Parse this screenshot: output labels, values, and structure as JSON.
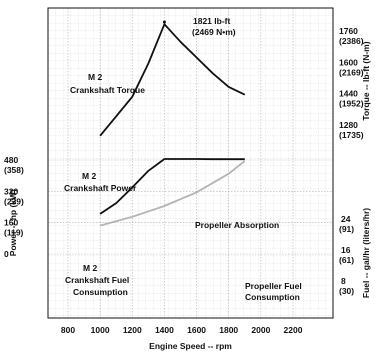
{
  "chart_data": {
    "type": "line",
    "title": "",
    "xlabel": "Engine Speed -- rpm",
    "xlim": [
      700,
      2400
    ],
    "xticks": [
      "800",
      "1000",
      "1200",
      "1400",
      "1600",
      "1800",
      "2000",
      "2200"
    ],
    "x_values": [
      800,
      1000,
      1200,
      1400,
      1600,
      1800,
      2000,
      2200
    ],
    "grid": true,
    "left_axis": {
      "label": "Power -- hp (kW)",
      "ticks": [
        {
          "value": 480,
          "label": "480",
          "sublabel": "(358)"
        },
        {
          "value": 320,
          "label": "320",
          "sublabel": "(239)"
        },
        {
          "value": 160,
          "label": "160",
          "sublabel": "(119)"
        },
        {
          "value": 0,
          "label": "0",
          "sublabel": ""
        }
      ]
    },
    "right_torque_axis": {
      "label": "Torque -- lb-ft (N-m)",
      "ticks": [
        {
          "value": 1760,
          "label": "1760",
          "sublabel": "(2386)"
        },
        {
          "value": 1600,
          "label": "1600",
          "sublabel": "(2169)"
        },
        {
          "value": 1440,
          "label": "1440",
          "sublabel": "(1952)"
        },
        {
          "value": 1280,
          "label": "1280",
          "sublabel": "(1735)"
        }
      ]
    },
    "right_fuel_axis": {
      "label": "Fuel -- gal/hr (liters/hr)",
      "ticks": [
        {
          "value": 24,
          "label": "24",
          "sublabel": "(91)"
        },
        {
          "value": 16,
          "label": "16",
          "sublabel": "(61)"
        },
        {
          "value": 8,
          "label": "8",
          "sublabel": "(30)"
        }
      ]
    },
    "series": [
      {
        "label_lines": [
          "M 2",
          "Crankshaft Torque"
        ],
        "axis": "torque",
        "color": "#111111",
        "x": [
          1000,
          1100,
          1200,
          1300,
          1400,
          1500,
          1600,
          1700,
          1800,
          1900
        ],
        "y": [
          1240,
          1340,
          1440,
          1610,
          1810,
          1720,
          1640,
          1560,
          1490,
          1450
        ]
      },
      {
        "label_lines": [
          "M 2",
          "Crankshaft Power"
        ],
        "axis": "power",
        "color": "#111111",
        "x": [
          1000,
          1100,
          1200,
          1300,
          1400,
          1500,
          1600,
          1700,
          1800,
          1900
        ],
        "y": [
          205,
          260,
          340,
          425,
          485,
          485,
          485,
          484,
          484,
          484
        ]
      },
      {
        "label_lines": [
          "Propeller Absorption"
        ],
        "axis": "power",
        "color": "#b4b4b4",
        "x": [
          1000,
          1200,
          1400,
          1600,
          1800,
          1900
        ],
        "y": [
          145,
          190,
          245,
          315,
          410,
          475
        ]
      },
      {
        "label_lines": [
          "M 2",
          "Crankshaft Fuel",
          "Consumption"
        ],
        "axis": "fuel",
        "color": "#111111",
        "x": [],
        "y": []
      },
      {
        "label_lines": [
          "Propeller Fuel",
          "Consumption"
        ],
        "axis": "fuel",
        "color": "#111111",
        "x": [],
        "y": []
      }
    ],
    "annotations": [
      {
        "text": "1821 lb-ft",
        "subtext": "(2469 N•m)",
        "x": 1400,
        "y": 1821,
        "axis": "torque"
      }
    ]
  }
}
